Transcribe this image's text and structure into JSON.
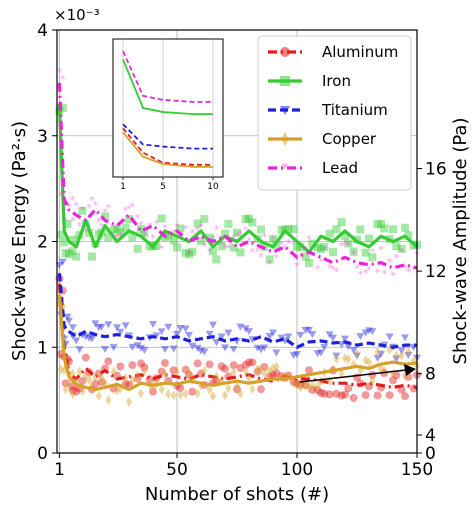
{
  "chart_data": {
    "type": "line",
    "xlabel": "Number of shots (#)",
    "ylabel": "Shock-wave Energy (Pa²·s)",
    "y_multiplier_label": "×10⁻³",
    "ylabel_right": "Shock-wave Amplitude (Pa)",
    "xlim": [
      0,
      150
    ],
    "ylim": [
      0,
      4
    ],
    "xticks": [
      1,
      50,
      100,
      150
    ],
    "yticks": [
      "0",
      "1",
      "2",
      "3",
      "4"
    ],
    "right_ticks": [
      {
        "label": "0",
        "left_value": 0
      },
      {
        "label": "4",
        "left_value": 0.17
      },
      {
        "label": "8",
        "left_value": 0.75
      },
      {
        "label": "12",
        "left_value": 1.72
      },
      {
        "label": "16",
        "left_value": 2.69
      }
    ],
    "grid": true,
    "legend_position": "top-right",
    "series": [
      {
        "name": "Aluminum",
        "color": "#e41a1c",
        "marker": "circle",
        "linestyle": "dash-dot",
        "x": [
          1,
          3,
          5,
          8,
          12,
          16,
          20,
          25,
          30,
          35,
          40,
          45,
          50,
          55,
          60,
          65,
          70,
          75,
          80,
          85,
          90,
          95,
          100,
          105,
          110,
          115,
          120,
          125,
          130,
          135,
          140,
          145,
          150
        ],
        "y": [
          1.6,
          1.0,
          0.75,
          0.7,
          0.8,
          0.72,
          0.78,
          0.7,
          0.72,
          0.74,
          0.7,
          0.74,
          0.72,
          0.7,
          0.74,
          0.72,
          0.7,
          0.72,
          0.74,
          0.7,
          0.68,
          0.72,
          0.7,
          0.7,
          0.68,
          0.66,
          0.66,
          0.64,
          0.66,
          0.64,
          0.62,
          0.64,
          0.62
        ]
      },
      {
        "name": "Iron",
        "color": "#33cc33",
        "marker": "square",
        "linestyle": "solid",
        "x": [
          1,
          3,
          5,
          8,
          12,
          16,
          20,
          25,
          30,
          35,
          40,
          45,
          50,
          55,
          60,
          65,
          70,
          75,
          80,
          85,
          90,
          95,
          100,
          105,
          110,
          115,
          120,
          125,
          130,
          135,
          140,
          145,
          150
        ],
        "y": [
          3.3,
          2.1,
          2.0,
          1.95,
          2.2,
          1.95,
          2.15,
          2.0,
          2.1,
          2.05,
          1.95,
          2.1,
          2.05,
          2.0,
          2.1,
          1.95,
          2.05,
          2.0,
          2.1,
          2.0,
          1.95,
          2.1,
          2.0,
          1.9,
          2.05,
          2.0,
          2.1,
          2.0,
          1.95,
          2.05,
          2.0,
          2.05,
          1.95
        ]
      },
      {
        "name": "Titanium",
        "color": "#1f1fdd",
        "marker": "triangle-down",
        "linestyle": "dashed",
        "x": [
          1,
          3,
          5,
          8,
          12,
          16,
          20,
          25,
          30,
          35,
          40,
          45,
          50,
          55,
          60,
          65,
          70,
          75,
          80,
          85,
          90,
          95,
          100,
          105,
          110,
          115,
          120,
          125,
          130,
          135,
          140,
          145,
          150
        ],
        "y": [
          1.7,
          1.2,
          1.15,
          1.1,
          1.15,
          1.12,
          1.1,
          1.12,
          1.1,
          1.08,
          1.1,
          1.08,
          1.1,
          1.06,
          1.08,
          1.1,
          1.06,
          1.08,
          1.06,
          1.1,
          1.05,
          1.08,
          1.0,
          1.05,
          1.06,
          1.04,
          1.05,
          1.02,
          1.04,
          1.02,
          1.0,
          1.02,
          1.02
        ]
      },
      {
        "name": "Copper",
        "color": "#d4a12a",
        "marker": "diamond",
        "linestyle": "solid",
        "x": [
          1,
          3,
          5,
          8,
          12,
          16,
          20,
          25,
          30,
          35,
          40,
          45,
          50,
          55,
          60,
          65,
          70,
          75,
          80,
          85,
          90,
          95,
          100,
          105,
          110,
          115,
          120,
          125,
          130,
          135,
          140,
          145,
          150
        ],
        "y": [
          1.5,
          0.9,
          0.72,
          0.65,
          0.62,
          0.6,
          0.62,
          0.65,
          0.6,
          0.66,
          0.64,
          0.66,
          0.65,
          0.68,
          0.66,
          0.64,
          0.66,
          0.68,
          0.66,
          0.68,
          0.7,
          0.7,
          0.72,
          0.74,
          0.76,
          0.78,
          0.8,
          0.82,
          0.8,
          0.84,
          0.86,
          0.84,
          0.85
        ]
      },
      {
        "name": "Lead",
        "color": "#ee22dd",
        "marker": "star",
        "linestyle": "dash-dot",
        "x": [
          1,
          3,
          5,
          8,
          12,
          16,
          20,
          25,
          30,
          35,
          40,
          45,
          50,
          55,
          60,
          65,
          70,
          75,
          80,
          85,
          90,
          95,
          100,
          105,
          110,
          115,
          120,
          125,
          130,
          135,
          140,
          145,
          150
        ],
        "y": [
          3.5,
          2.4,
          2.3,
          2.25,
          2.2,
          2.3,
          2.2,
          2.15,
          2.25,
          2.1,
          2.15,
          2.05,
          2.1,
          2.0,
          2.05,
          2.0,
          2.05,
          1.95,
          2.0,
          1.95,
          1.9,
          1.95,
          1.85,
          1.9,
          1.85,
          1.8,
          1.85,
          1.8,
          1.78,
          1.8,
          1.75,
          1.78,
          1.75
        ]
      }
    ],
    "inset": {
      "xlim": [
        0,
        11
      ],
      "xticks": [
        1,
        5,
        10
      ],
      "ylim": [
        0.4,
        3.8
      ]
    }
  }
}
